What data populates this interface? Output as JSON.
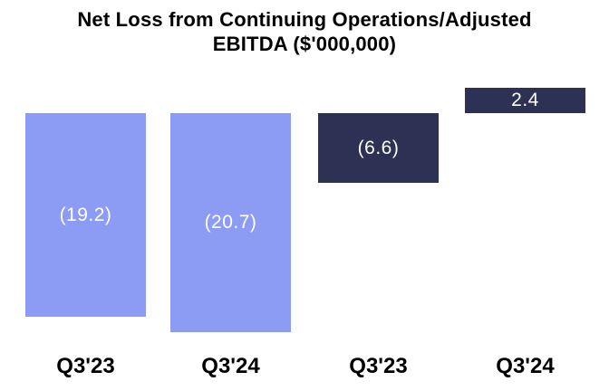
{
  "title": {
    "line1": "Net Loss from Continuing Operations/Adjusted",
    "line2": "EBITDA ($'000,000)"
  },
  "chart_data": {
    "type": "bar",
    "title": "Net Loss from Continuing Operations/Adjusted EBITDA ($'000,000)",
    "categories": [
      "Q3'23",
      "Q3'24",
      "Q3'23",
      "Q3'24"
    ],
    "values": [
      -19.2,
      -20.7,
      -6.6,
      2.4
    ],
    "data_labels": [
      "(19.2)",
      "(20.7)",
      "(6.6)",
      "2.4"
    ],
    "bar_colors": [
      "#8c9cf5",
      "#8c9cf5",
      "#2d3254",
      "#2d3254"
    ],
    "data_label_color": "#ffffff",
    "axis_label_color": "#000000",
    "background": "#ffffff",
    "ylim": [
      -22,
      3
    ],
    "baseline": 0,
    "grid": false,
    "legend": "none",
    "xlabel": "",
    "ylabel": ""
  }
}
